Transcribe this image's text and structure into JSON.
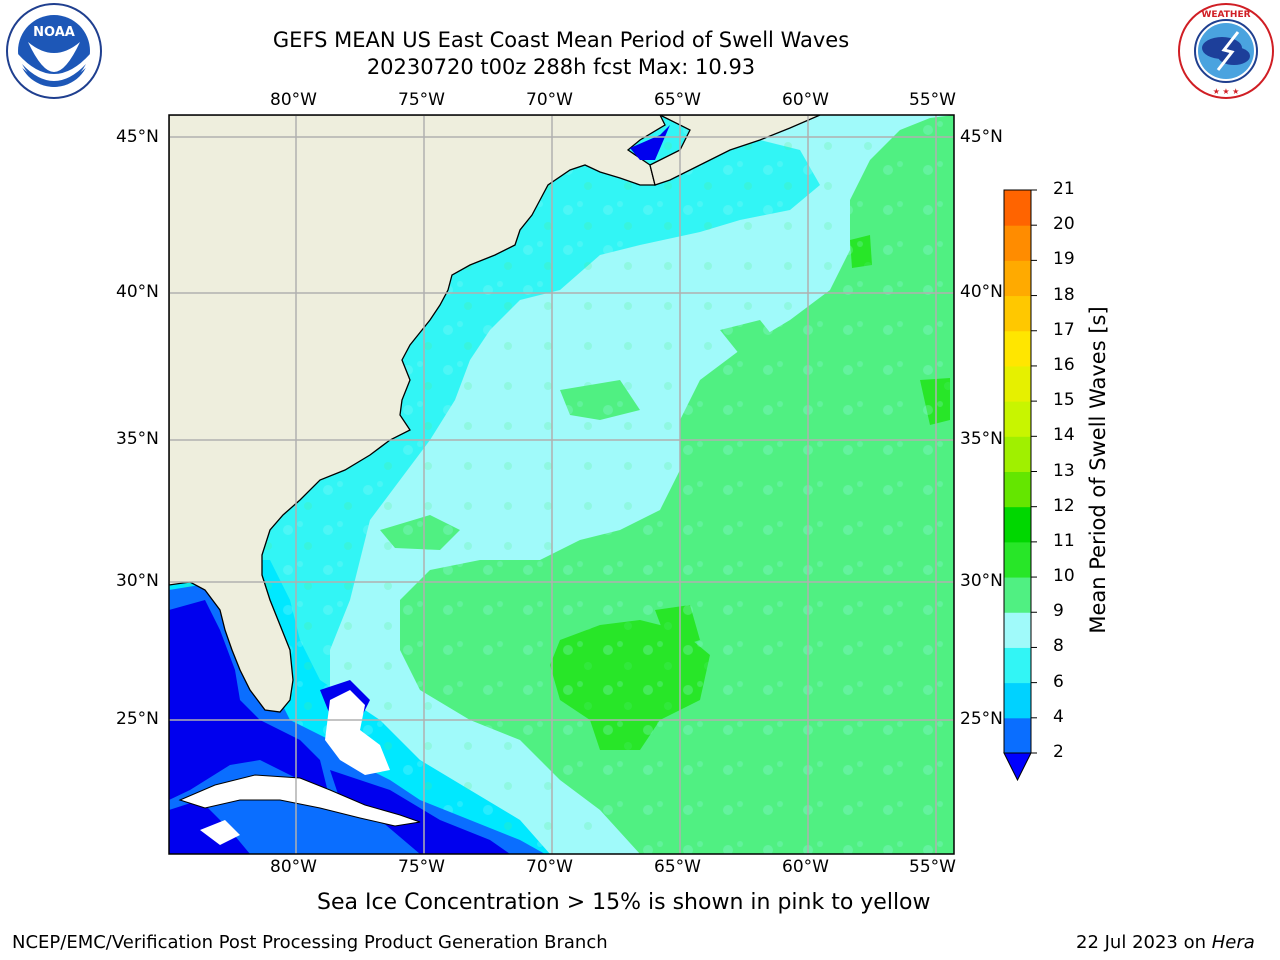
{
  "header": {
    "title_line1": "GEFS MEAN US East Coast Mean Period of Swell Waves",
    "title_line2": "20230720 t00z 288h fcst   Max: 10.93"
  },
  "logos": {
    "left": {
      "icon": "noaa-logo",
      "text": "NOAA",
      "ring_text": "NATIONAL OCEANIC AND ATMOSPHERIC ADMINISTRATION · U.S. DEPARTMENT OF COMMERCE"
    },
    "right": {
      "icon": "nws-logo",
      "ring_text": "NATIONAL WEATHER SERVICE"
    }
  },
  "map": {
    "lon_labels": [
      "80°W",
      "75°W",
      "70°W",
      "65°W",
      "60°W",
      "55°W"
    ],
    "lat_labels": [
      "45°N",
      "40°N",
      "35°N",
      "30°N",
      "25°N"
    ],
    "colors": {
      "land": "#eeeedd",
      "grid": "#b0b0b0",
      "coast": "#000000"
    }
  },
  "colorbar": {
    "label": "Mean Period of Swell Waves [s]",
    "ticks": [
      "2",
      "4",
      "6",
      "8",
      "9",
      "10",
      "11",
      "12",
      "13",
      "14",
      "15",
      "16",
      "17",
      "18",
      "19",
      "20",
      "21"
    ],
    "colors": [
      "#0a6eff",
      "#00d2ff",
      "#32f5f5",
      "#a0fafa",
      "#50f082",
      "#28e628",
      "#00d700",
      "#64e600",
      "#a0f000",
      "#c8f500",
      "#e6f000",
      "#ffe600",
      "#ffc800",
      "#ffaa00",
      "#ff8c00",
      "#ff6400",
      "#ff3200",
      "#ff0000"
    ],
    "extend_color": "#0000ff"
  },
  "footer": {
    "note": "Sea Ice Concentration > 15% is shown in pink to yellow",
    "left": "NCEP/EMC/Verification Post Processing Product Generation Branch",
    "right_date": "22 Jul 2023 on ",
    "right_machine": "Hera"
  }
}
